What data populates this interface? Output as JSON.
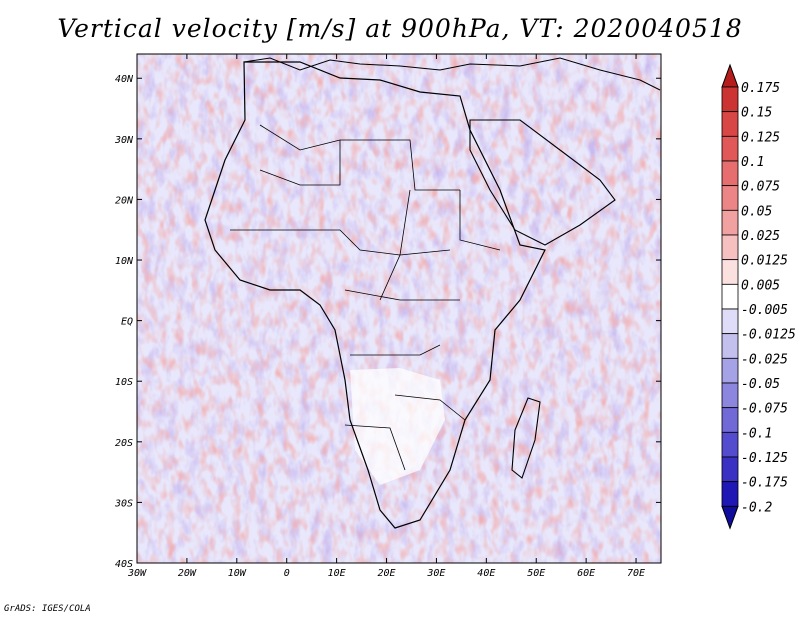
{
  "title": "Vertical velocity [m/s] at 900hPa, VT: 2020040518",
  "credit": "GrADS: IGES/COLA",
  "map": {
    "lon_labels": [
      "30W",
      "20W",
      "10W",
      "0",
      "10E",
      "20E",
      "30E",
      "40E",
      "50E",
      "60E",
      "70E"
    ],
    "lat_labels": [
      "40N",
      "30N",
      "20N",
      "10N",
      "EQ",
      "10S",
      "20S",
      "30S",
      "40S"
    ],
    "lon_range": [
      -30,
      75
    ],
    "lat_range": [
      -40,
      44
    ]
  },
  "colorbar": {
    "labels": [
      "0.175",
      "0.15",
      "0.125",
      "0.1",
      "0.075",
      "0.05",
      "0.025",
      "0.0125",
      "0.005",
      "-0.005",
      "-0.0125",
      "-0.025",
      "-0.05",
      "-0.075",
      "-0.1",
      "-0.125",
      "-0.175",
      "-0.2"
    ],
    "colors": [
      "#b51c1c",
      "#cc3333",
      "#d94646",
      "#e05858",
      "#e66e6e",
      "#ec8686",
      "#f2a1a1",
      "#f7c0c0",
      "#fbe0e0",
      "#ffffff",
      "#dedcf6",
      "#c3c0ee",
      "#a6a2e6",
      "#8c86de",
      "#7069d6",
      "#544cce",
      "#3a31c4",
      "#1f18b5",
      "#100d9e"
    ]
  }
}
